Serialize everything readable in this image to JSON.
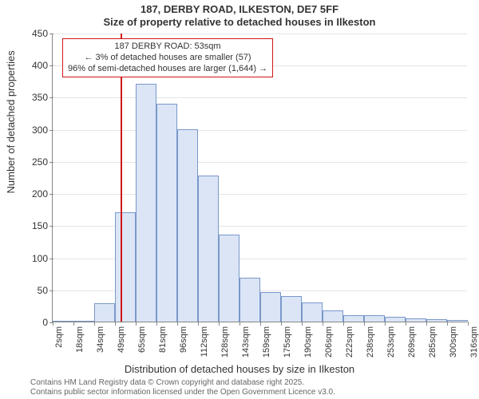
{
  "title_line1": "187, DERBY ROAD, ILKESTON, DE7 5FF",
  "title_line2": "Size of property relative to detached houses in Ilkeston",
  "ylabel": "Number of detached properties",
  "xlabel": "Distribution of detached houses by size in Ilkeston",
  "footer_line1": "Contains HM Land Registry data © Crown copyright and database right 2025.",
  "footer_line2": "Contains public sector information licensed under the Open Government Licence v3.0.",
  "chart": {
    "type": "histogram",
    "background_color": "#ffffff",
    "grid_color": "#e5e5e5",
    "axis_color": "#888888",
    "bar_fill": "#dbe5f6",
    "bar_stroke": "#7a98c9",
    "refline_color": "#d01717",
    "annot_border": "#d01717",
    "title_fontsize": 13,
    "label_fontsize": 13,
    "tick_fontsize": 12,
    "xtick_fontsize": 11,
    "ylim": [
      0,
      450
    ],
    "ytick_step": 50,
    "xticks": [
      "2sqm",
      "18sqm",
      "34sqm",
      "49sqm",
      "65sqm",
      "81sqm",
      "96sqm",
      "112sqm",
      "128sqm",
      "143sqm",
      "159sqm",
      "175sqm",
      "190sqm",
      "206sqm",
      "222sqm",
      "238sqm",
      "253sqm",
      "269sqm",
      "285sqm",
      "300sqm",
      "316sqm"
    ],
    "bars": [
      0,
      0,
      28,
      170,
      370,
      340,
      300,
      228,
      135,
      68,
      46,
      40,
      30,
      18,
      10,
      10,
      8,
      5,
      4,
      3
    ],
    "reference_index": 3,
    "annotation": {
      "line1": "187 DERBY ROAD: 53sqm",
      "line2": "← 3% of detached houses are smaller (57)",
      "line3": "96% of semi-detached houses are larger (1,644) →"
    }
  }
}
